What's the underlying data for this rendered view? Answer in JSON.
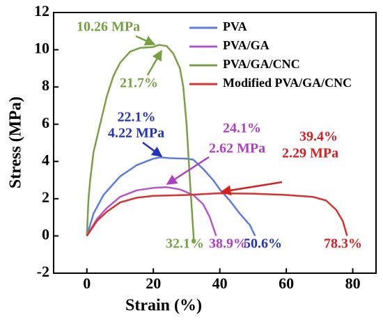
{
  "chart_data": {
    "type": "line",
    "x_label": "Strain (%)",
    "y_label": "Stress (MPa)",
    "xlim": [
      -10,
      87
    ],
    "ylim": [
      -2,
      12
    ],
    "xticks": [
      0,
      20,
      40,
      60,
      80
    ],
    "yticks": [
      -2,
      0,
      2,
      4,
      6,
      8,
      10,
      12
    ],
    "legend": "top-right",
    "series": [
      {
        "name": "PVA",
        "color": "#5b7be0",
        "x": [
          0,
          2,
          5,
          10,
          15,
          20,
          22.1,
          25,
          30,
          32,
          35,
          38,
          40,
          43,
          46,
          49,
          50.6
        ],
        "values": [
          0,
          1.2,
          2.2,
          3.2,
          3.8,
          4.15,
          4.22,
          4.18,
          4.15,
          4.1,
          3.6,
          3.0,
          2.5,
          1.9,
          1.2,
          0.6,
          0
        ]
      },
      {
        "name": "PVA/GA",
        "color": "#b555c9",
        "x": [
          0,
          3,
          6,
          10,
          15,
          20,
          24.1,
          28,
          32,
          35,
          37,
          38.9
        ],
        "values": [
          0,
          0.9,
          1.5,
          2.1,
          2.45,
          2.58,
          2.62,
          2.5,
          2.2,
          1.7,
          1.0,
          0
        ]
      },
      {
        "name": "PVA/GA/CNC",
        "color": "#77a044",
        "x": [
          0,
          0.5,
          1,
          2,
          4,
          6,
          8,
          10,
          13,
          16,
          20,
          21.7,
          24,
          26,
          28,
          29,
          30,
          31,
          32.1,
          32.1
        ],
        "values": [
          0,
          2,
          3,
          4.5,
          6,
          7.5,
          8.6,
          9.3,
          9.9,
          10.1,
          10.15,
          10.26,
          10.2,
          9.8,
          9,
          8,
          6,
          3,
          0,
          -0.4
        ]
      },
      {
        "name": "Modified PVA/GA/CNC",
        "color": "#d93030",
        "x": [
          0,
          3,
          6,
          10,
          15,
          20,
          30,
          39.4,
          50,
          60,
          68,
          72,
          75,
          77,
          78.3
        ],
        "values": [
          0,
          0.8,
          1.3,
          1.8,
          2.05,
          2.15,
          2.2,
          2.29,
          2.27,
          2.2,
          2.1,
          1.9,
          1.4,
          0.8,
          0
        ]
      }
    ],
    "annotations": [
      {
        "text": "10.26 MPa",
        "color": "#77a044"
      },
      {
        "text": "21.7%",
        "color": "#77a044"
      },
      {
        "text": "22.1%",
        "color": "#2233bb"
      },
      {
        "text": "4.22 MPa",
        "color": "#2233bb"
      },
      {
        "text": "24.1%",
        "color": "#b03ec0"
      },
      {
        "text": "2.62 MPa",
        "color": "#b03ec0"
      },
      {
        "text": "39.4%",
        "color": "#d42020"
      },
      {
        "text": "2.29 MPa",
        "color": "#d42020"
      },
      {
        "text": "32.1%",
        "color": "#77a044"
      },
      {
        "text": "38.9%",
        "color": "#b03ec0"
      },
      {
        "text": "50.6%",
        "color": "#2233bb"
      },
      {
        "text": "78.3%",
        "color": "#d42020"
      }
    ]
  }
}
